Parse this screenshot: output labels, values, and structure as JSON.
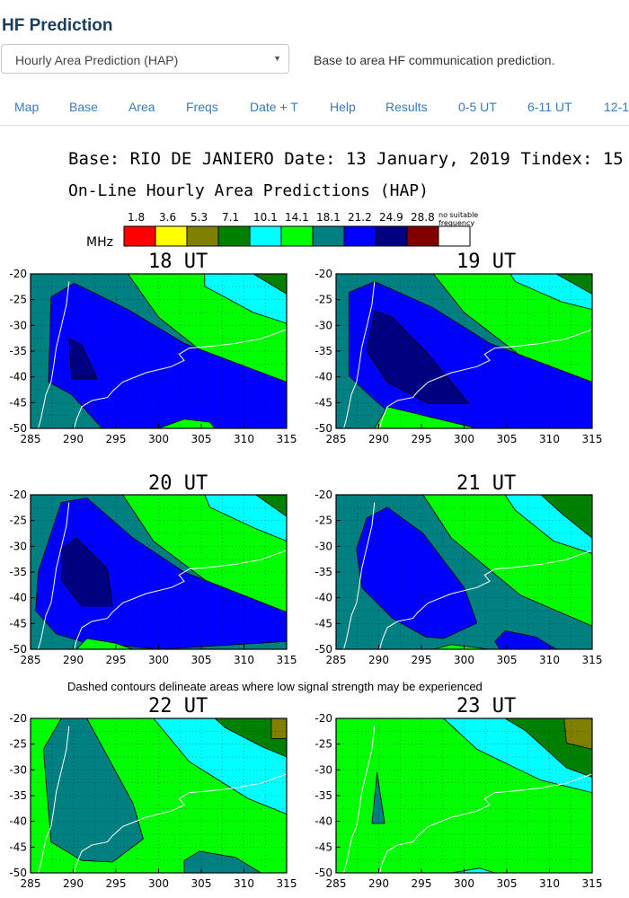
{
  "header": {
    "title": "HF Prediction"
  },
  "selector": {
    "value": "Hourly Area Prediction (HAP)",
    "arrow_icon": "triangle-down"
  },
  "description": "Base to area HF communication prediction.",
  "nav": [
    "Map",
    "Base",
    "Area",
    "Freqs",
    "Date + T",
    "Help",
    "Results",
    "0-5 UT",
    "6-11 UT",
    "12-1"
  ],
  "image": {
    "base_line": "Base: RIO DE JANIERO Date: 13 January, 2019 Tindex: 15",
    "subtitle": "On-Line Hourly Area Predictions (HAP)",
    "legend": {
      "unit": "MHz",
      "values": [
        "1.8",
        "3.6",
        "5.3",
        "7.1",
        "10.1",
        "14.1",
        "18.1",
        "21.2",
        "24.9",
        "28.8"
      ],
      "last_label_1": "no suitable",
      "last_label_2": "frequency",
      "colors": [
        "#ff0000",
        "#ffff00",
        "#808000",
        "#008000",
        "#00ffff",
        "#00ff00",
        "#008080",
        "#0000ff",
        "#000080",
        "#800000",
        "#ffffff"
      ]
    },
    "note": "Dashed contours delineate areas where low signal strength may be experienced",
    "axis": {
      "x_ticks": [
        "285",
        "290",
        "295",
        "300",
        "305",
        "310",
        "315"
      ],
      "y_ticks": [
        "-20",
        "-25",
        "-30",
        "-35",
        "-40",
        "-45",
        "-50"
      ]
    },
    "panels": [
      {
        "label": "18 UT"
      },
      {
        "label": "19 UT"
      },
      {
        "label": "20 UT"
      },
      {
        "label": "21 UT"
      },
      {
        "label": "22 UT"
      },
      {
        "label": "23 UT"
      }
    ]
  }
}
